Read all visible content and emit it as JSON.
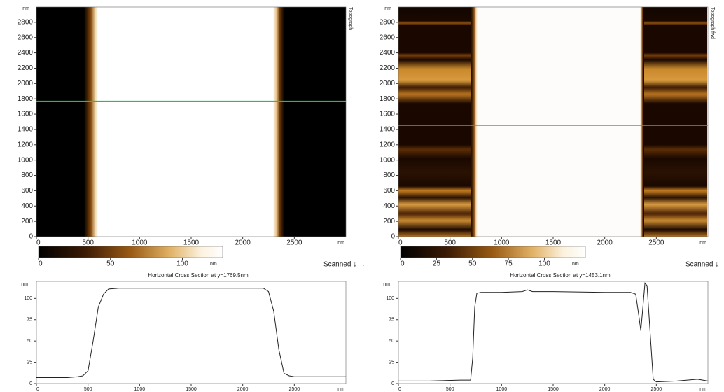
{
  "chart_data": [
    {
      "type": "image",
      "x_unit": "nm",
      "y_unit": "nm",
      "side_label": "Topograph",
      "scan_label": "Scanned ↓ →",
      "xlim": [
        0,
        3000
      ],
      "ylim": [
        0,
        3000
      ],
      "xticks": [
        0,
        500,
        1000,
        1500,
        2000,
        2500
      ],
      "yticks": [
        0,
        200,
        400,
        600,
        800,
        1000,
        1200,
        1400,
        1600,
        1800,
        2000,
        2200,
        2400,
        2600,
        2800
      ],
      "cursor_y": 1769.5,
      "cursor_color": "#22c24a",
      "colorbar_lim": [
        0,
        128
      ],
      "colorbar_ticks": [
        0,
        50,
        100
      ],
      "colorbar_unit": "nm"
    },
    {
      "type": "line",
      "title": "Horizontal Cross Section at y=1769.5nm",
      "x_unit": "nm",
      "y_unit": "nm",
      "color": "#222222",
      "xlim": [
        0,
        3000
      ],
      "ylim": [
        0,
        120
      ],
      "xticks": [
        0,
        500,
        1000,
        1500,
        2000,
        2500
      ],
      "yticks": [
        0,
        25,
        50,
        75,
        100
      ],
      "x": [
        0,
        100,
        200,
        300,
        400,
        450,
        500,
        550,
        600,
        650,
        700,
        800,
        1000,
        1500,
        2000,
        2200,
        2250,
        2300,
        2350,
        2400,
        2450,
        2500,
        2700,
        3000
      ],
      "values": [
        7,
        7,
        7,
        7,
        8,
        9,
        15,
        50,
        90,
        105,
        111,
        112,
        112,
        112,
        112,
        112,
        108,
        85,
        40,
        12,
        9,
        8,
        8,
        8
      ]
    },
    {
      "type": "image",
      "x_unit": "nm",
      "y_unit": "nm",
      "side_label": "Topograph fwd",
      "scan_label": "Scanned ↓ →",
      "xlim": [
        0,
        3000
      ],
      "ylim": [
        0,
        3000
      ],
      "xticks": [
        0,
        500,
        1000,
        1500,
        2000,
        2500
      ],
      "yticks": [
        0,
        200,
        400,
        600,
        800,
        1000,
        1200,
        1400,
        1600,
        1800,
        2000,
        2200,
        2400,
        2600,
        2800
      ],
      "cursor_y": 1453.1,
      "cursor_color": "#22c24a",
      "colorbar_lim": [
        0,
        128
      ],
      "colorbar_ticks": [
        0,
        25,
        50,
        75,
        100
      ],
      "colorbar_unit": "nm"
    },
    {
      "type": "line",
      "title": "Horizontal Cross Section at y=1453.1nm",
      "x_unit": "nm",
      "y_unit": "nm",
      "color": "#222222",
      "xlim": [
        0,
        3000
      ],
      "ylim": [
        0,
        120
      ],
      "xticks": [
        0,
        500,
        1000,
        1500,
        2000,
        2500
      ],
      "yticks": [
        0,
        25,
        50,
        75,
        100
      ],
      "x": [
        0,
        300,
        600,
        700,
        720,
        740,
        760,
        800,
        1000,
        1200,
        1250,
        1300,
        1500,
        2000,
        2250,
        2300,
        2330,
        2350,
        2370,
        2390,
        2410,
        2440,
        2470,
        2500,
        2700,
        2900,
        3000
      ],
      "values": [
        3,
        3,
        4,
        4,
        30,
        90,
        106,
        107,
        107,
        108,
        110,
        108,
        108,
        107,
        107,
        105,
        80,
        62,
        90,
        118,
        115,
        60,
        5,
        2,
        3,
        5,
        3
      ]
    }
  ]
}
